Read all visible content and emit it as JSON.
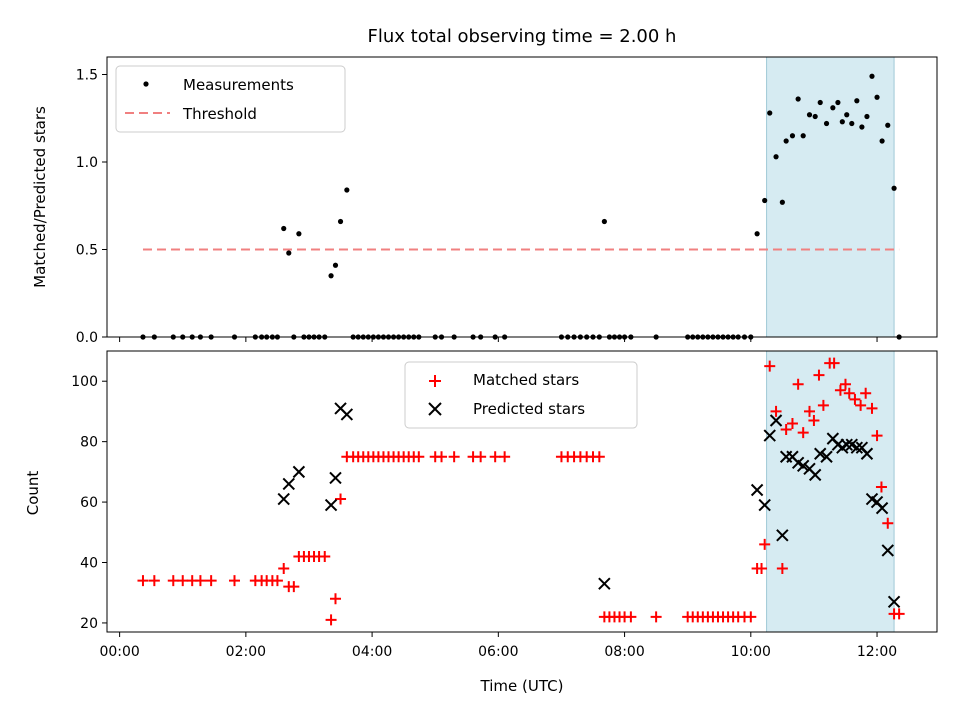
{
  "chart_data": [
    {
      "type": "scatter",
      "title": "Flux total observing time = 2.00 h",
      "xlabel": "",
      "ylabel": "Matched/Predicted stars",
      "xlim": [
        -0.2,
        12.95
      ],
      "ylim": [
        0,
        1.6
      ],
      "yticks": [
        "0.0",
        "0.5",
        "1.0",
        "1.5"
      ],
      "ytick_values": [
        0,
        0.5,
        1.0,
        1.5
      ],
      "shaded_span": [
        10.25,
        12.27
      ],
      "legend": {
        "placement": "top-left",
        "entries": [
          "Measurements",
          "Threshold"
        ]
      },
      "threshold": {
        "name": "Threshold",
        "value": 0.5,
        "x_range": [
          0.37,
          12.35
        ],
        "color": "#f08080"
      },
      "series": [
        {
          "name": "Measurements",
          "color": "#000000",
          "points": [
            [
              0.37,
              0
            ],
            [
              0.55,
              0
            ],
            [
              0.85,
              0
            ],
            [
              1.0,
              0
            ],
            [
              1.15,
              0
            ],
            [
              1.28,
              0
            ],
            [
              1.45,
              0
            ],
            [
              1.82,
              0
            ],
            [
              2.15,
              0
            ],
            [
              2.25,
              0
            ],
            [
              2.33,
              0
            ],
            [
              2.42,
              0
            ],
            [
              2.5,
              0
            ],
            [
              2.6,
              0.62
            ],
            [
              2.68,
              0.48
            ],
            [
              2.76,
              0
            ],
            [
              2.84,
              0.59
            ],
            [
              2.92,
              0
            ],
            [
              3.0,
              0
            ],
            [
              3.08,
              0
            ],
            [
              3.16,
              0
            ],
            [
              3.25,
              0
            ],
            [
              3.35,
              0.35
            ],
            [
              3.42,
              0.41
            ],
            [
              3.5,
              0.66
            ],
            [
              3.6,
              0.84
            ],
            [
              3.7,
              0
            ],
            [
              3.78,
              0
            ],
            [
              3.86,
              0
            ],
            [
              3.94,
              0
            ],
            [
              4.02,
              0
            ],
            [
              4.1,
              0
            ],
            [
              4.18,
              0
            ],
            [
              4.26,
              0
            ],
            [
              4.34,
              0
            ],
            [
              4.42,
              0
            ],
            [
              4.5,
              0
            ],
            [
              4.58,
              0
            ],
            [
              4.66,
              0
            ],
            [
              4.74,
              0
            ],
            [
              5.0,
              0
            ],
            [
              5.1,
              0
            ],
            [
              5.3,
              0
            ],
            [
              5.6,
              0
            ],
            [
              5.72,
              0
            ],
            [
              5.95,
              0
            ],
            [
              6.1,
              0
            ],
            [
              7.0,
              0
            ],
            [
              7.1,
              0
            ],
            [
              7.2,
              0
            ],
            [
              7.3,
              0
            ],
            [
              7.4,
              0
            ],
            [
              7.5,
              0
            ],
            [
              7.6,
              0
            ],
            [
              7.68,
              0.66
            ],
            [
              7.76,
              0
            ],
            [
              7.84,
              0
            ],
            [
              7.92,
              0
            ],
            [
              8.0,
              0
            ],
            [
              8.1,
              0
            ],
            [
              8.5,
              0
            ],
            [
              9.0,
              0
            ],
            [
              9.08,
              0
            ],
            [
              9.16,
              0
            ],
            [
              9.24,
              0
            ],
            [
              9.32,
              0
            ],
            [
              9.4,
              0
            ],
            [
              9.48,
              0
            ],
            [
              9.56,
              0
            ],
            [
              9.64,
              0
            ],
            [
              9.72,
              0
            ],
            [
              9.8,
              0
            ],
            [
              9.9,
              0
            ],
            [
              10.0,
              0
            ],
            [
              10.1,
              0.59
            ],
            [
              10.22,
              0.78
            ],
            [
              10.3,
              1.28
            ],
            [
              10.4,
              1.03
            ],
            [
              10.5,
              0.77
            ],
            [
              10.56,
              1.12
            ],
            [
              10.66,
              1.15
            ],
            [
              10.75,
              1.36
            ],
            [
              10.83,
              1.15
            ],
            [
              10.93,
              1.27
            ],
            [
              11.02,
              1.26
            ],
            [
              11.1,
              1.34
            ],
            [
              11.2,
              1.22
            ],
            [
              11.3,
              1.31
            ],
            [
              11.38,
              1.34
            ],
            [
              11.45,
              1.23
            ],
            [
              11.52,
              1.27
            ],
            [
              11.6,
              1.22
            ],
            [
              11.68,
              1.35
            ],
            [
              11.76,
              1.2
            ],
            [
              11.84,
              1.26
            ],
            [
              11.92,
              1.49
            ],
            [
              12.0,
              1.37
            ],
            [
              12.08,
              1.12
            ],
            [
              12.17,
              1.21
            ],
            [
              12.27,
              0.85
            ],
            [
              12.35,
              0
            ]
          ]
        }
      ]
    },
    {
      "type": "scatter",
      "title": "",
      "xlabel": "Time (UTC)",
      "ylabel": "Count",
      "xlim": [
        -0.2,
        12.95
      ],
      "ylim": [
        17,
        110
      ],
      "yticks": [
        "20",
        "40",
        "60",
        "80",
        "100"
      ],
      "ytick_values": [
        20,
        40,
        60,
        80,
        100
      ],
      "xticks": [
        "00:00",
        "02:00",
        "04:00",
        "06:00",
        "08:00",
        "10:00",
        "12:00"
      ],
      "xtick_values": [
        0,
        2,
        4,
        6,
        8,
        10,
        12
      ],
      "shaded_span": [
        10.25,
        12.27
      ],
      "legend": {
        "placement": "top-center",
        "entries": [
          "Matched stars",
          "Predicted stars"
        ]
      },
      "series": [
        {
          "name": "Matched stars",
          "marker": "+",
          "color": "#ff0000",
          "points": [
            [
              0.37,
              34
            ],
            [
              0.55,
              34
            ],
            [
              0.85,
              34
            ],
            [
              1.0,
              34
            ],
            [
              1.15,
              34
            ],
            [
              1.28,
              34
            ],
            [
              1.45,
              34
            ],
            [
              1.82,
              34
            ],
            [
              2.15,
              34
            ],
            [
              2.25,
              34
            ],
            [
              2.33,
              34
            ],
            [
              2.42,
              34
            ],
            [
              2.5,
              34
            ],
            [
              2.6,
              38
            ],
            [
              2.68,
              32
            ],
            [
              2.76,
              32
            ],
            [
              2.84,
              42
            ],
            [
              2.92,
              42
            ],
            [
              3.0,
              42
            ],
            [
              3.08,
              42
            ],
            [
              3.16,
              42
            ],
            [
              3.25,
              42
            ],
            [
              3.35,
              21
            ],
            [
              3.42,
              28
            ],
            [
              3.5,
              61
            ],
            [
              3.6,
              75
            ],
            [
              3.7,
              75
            ],
            [
              3.78,
              75
            ],
            [
              3.86,
              75
            ],
            [
              3.94,
              75
            ],
            [
              4.02,
              75
            ],
            [
              4.1,
              75
            ],
            [
              4.18,
              75
            ],
            [
              4.26,
              75
            ],
            [
              4.34,
              75
            ],
            [
              4.42,
              75
            ],
            [
              4.5,
              75
            ],
            [
              4.58,
              75
            ],
            [
              4.66,
              75
            ],
            [
              4.74,
              75
            ],
            [
              5.0,
              75
            ],
            [
              5.1,
              75
            ],
            [
              5.3,
              75
            ],
            [
              5.6,
              75
            ],
            [
              5.72,
              75
            ],
            [
              5.95,
              75
            ],
            [
              6.1,
              75
            ],
            [
              7.0,
              75
            ],
            [
              7.1,
              75
            ],
            [
              7.2,
              75
            ],
            [
              7.3,
              75
            ],
            [
              7.4,
              75
            ],
            [
              7.5,
              75
            ],
            [
              7.6,
              75
            ],
            [
              7.68,
              22
            ],
            [
              7.76,
              22
            ],
            [
              7.84,
              22
            ],
            [
              7.92,
              22
            ],
            [
              8.0,
              22
            ],
            [
              8.1,
              22
            ],
            [
              8.5,
              22
            ],
            [
              9.0,
              22
            ],
            [
              9.08,
              22
            ],
            [
              9.16,
              22
            ],
            [
              9.24,
              22
            ],
            [
              9.32,
              22
            ],
            [
              9.4,
              22
            ],
            [
              9.48,
              22
            ],
            [
              9.56,
              22
            ],
            [
              9.64,
              22
            ],
            [
              9.72,
              22
            ],
            [
              9.8,
              22
            ],
            [
              9.9,
              22
            ],
            [
              10.0,
              22
            ],
            [
              10.1,
              38
            ],
            [
              10.17,
              38
            ],
            [
              10.22,
              46
            ],
            [
              10.3,
              105
            ],
            [
              10.4,
              90
            ],
            [
              10.5,
              38
            ],
            [
              10.56,
              84
            ],
            [
              10.66,
              86
            ],
            [
              10.75,
              99
            ],
            [
              10.83,
              83
            ],
            [
              10.93,
              90
            ],
            [
              11.0,
              87
            ],
            [
              11.08,
              102
            ],
            [
              11.15,
              92
            ],
            [
              11.25,
              106
            ],
            [
              11.32,
              106
            ],
            [
              11.42,
              97
            ],
            [
              11.5,
              99
            ],
            [
              11.56,
              96
            ],
            [
              11.65,
              94
            ],
            [
              11.74,
              92
            ],
            [
              11.82,
              96
            ],
            [
              11.92,
              91
            ],
            [
              12.0,
              82
            ],
            [
              12.07,
              65
            ],
            [
              12.17,
              53
            ],
            [
              12.27,
              23
            ],
            [
              12.35,
              23
            ]
          ]
        },
        {
          "name": "Predicted stars",
          "marker": "x",
          "color": "#000000",
          "points": [
            [
              2.6,
              61
            ],
            [
              2.68,
              66
            ],
            [
              2.84,
              70
            ],
            [
              3.35,
              59
            ],
            [
              3.42,
              68
            ],
            [
              3.5,
              91
            ],
            [
              3.6,
              89
            ],
            [
              7.68,
              33
            ],
            [
              10.1,
              64
            ],
            [
              10.22,
              59
            ],
            [
              10.3,
              82
            ],
            [
              10.4,
              87
            ],
            [
              10.5,
              49
            ],
            [
              10.56,
              75
            ],
            [
              10.66,
              75
            ],
            [
              10.75,
              73
            ],
            [
              10.83,
              72
            ],
            [
              10.93,
              71
            ],
            [
              11.02,
              69
            ],
            [
              11.1,
              76
            ],
            [
              11.2,
              75
            ],
            [
              11.3,
              81
            ],
            [
              11.38,
              79
            ],
            [
              11.45,
              78
            ],
            [
              11.52,
              79
            ],
            [
              11.6,
              79
            ],
            [
              11.68,
              78
            ],
            [
              11.76,
              78
            ],
            [
              11.84,
              76
            ],
            [
              11.92,
              61
            ],
            [
              12.0,
              60
            ],
            [
              12.08,
              58
            ],
            [
              12.17,
              44
            ],
            [
              12.27,
              27
            ]
          ]
        }
      ]
    }
  ]
}
